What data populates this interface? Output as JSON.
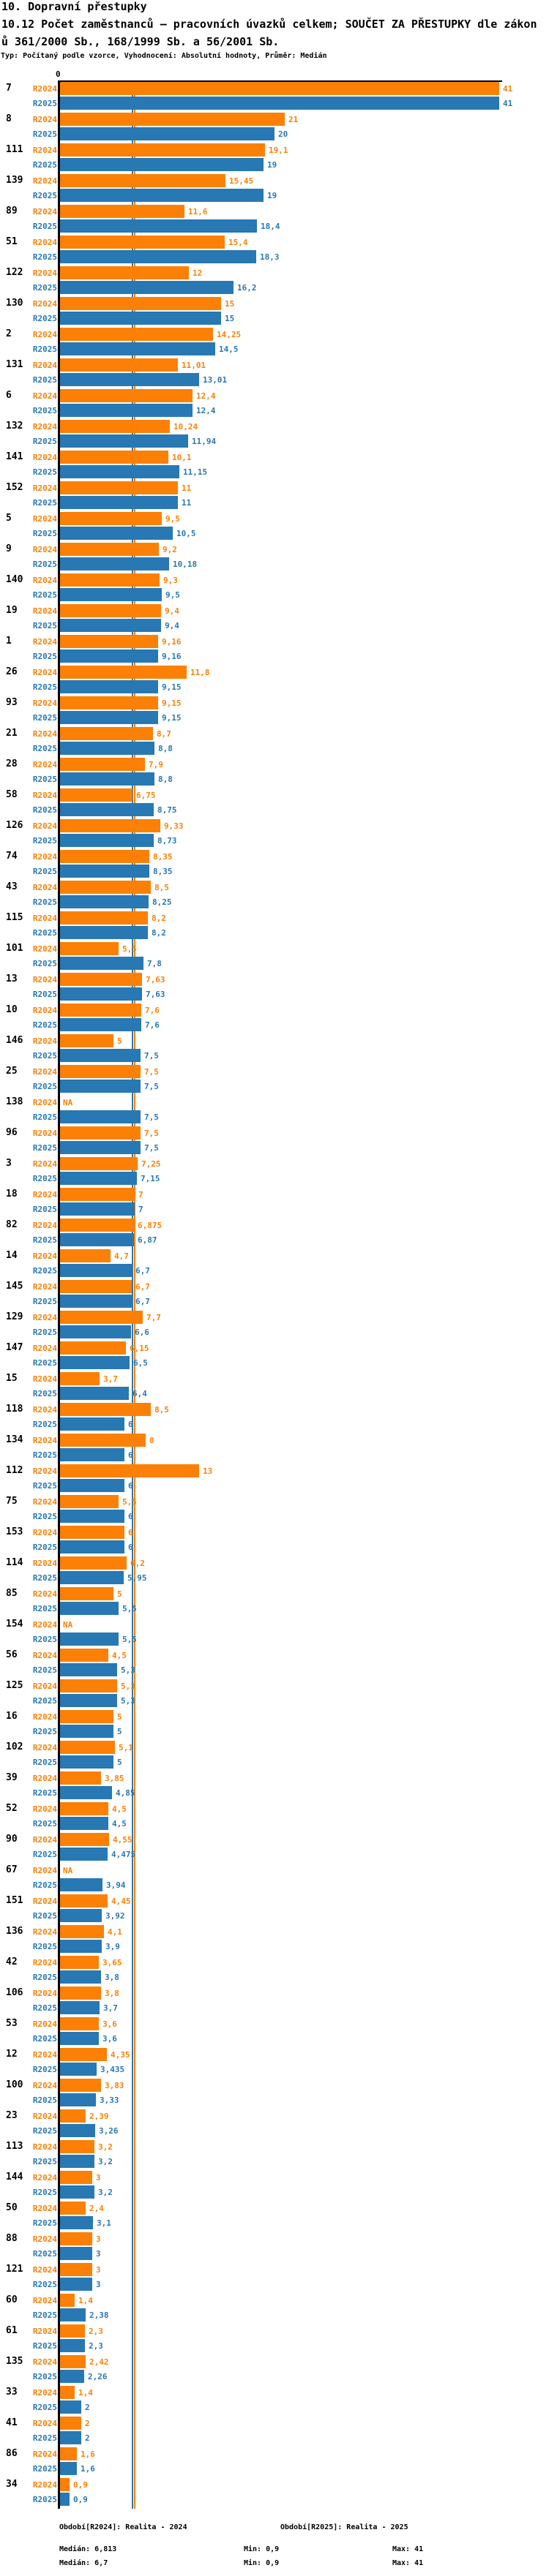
{
  "header": {
    "line1": "10. Dopravní přestupky",
    "line2": "10.12 Počet zaměstnanců – pracovních úvazků celkem; SOUČET ZA PŘESTUPKY dle zákon",
    "line3": "ů 361/2000 Sb., 168/1999 Sb. a 56/2001 Sb.",
    "line4": "Typ: Počítaný podle vzorce, Vyhodnocení: Absolutní hodnoty, Průměr: Medián"
  },
  "chart_data": {
    "type": "bar",
    "orientation": "horizontal",
    "title": "10.12 Počet zaměstnanců – pracovních úvazků celkem; SOUČET ZA PŘESTUPKY dle zákonů 361/2000 Sb., 168/1999 Sb. a 56/2001 Sb.",
    "x_axis": {
      "zero_label": "0",
      "max": 41,
      "gridlines": false
    },
    "series": [
      {
        "key": "r2024",
        "label": "R2024",
        "color": "#FB8005",
        "median": 6.813
      },
      {
        "key": "r2025",
        "label": "R2025",
        "color": "#2878B4",
        "median": 6.7
      }
    ],
    "row_columns": [
      "id",
      "value_2024",
      "label_2024",
      "value_2025",
      "label_2025"
    ],
    "rows": [
      [
        "7",
        41,
        "41",
        41,
        "41"
      ],
      [
        "8",
        21,
        "21",
        20,
        "20"
      ],
      [
        "111",
        19.1,
        "19,1",
        19,
        "19"
      ],
      [
        "139",
        15.45,
        "15,45",
        19,
        "19"
      ],
      [
        "89",
        11.6,
        "11,6",
        18.4,
        "18,4"
      ],
      [
        "51",
        15.4,
        "15,4",
        18.3,
        "18,3"
      ],
      [
        "122",
        12,
        "12",
        16.2,
        "16,2"
      ],
      [
        "130",
        15,
        "15",
        15,
        "15"
      ],
      [
        "2",
        14.25,
        "14,25",
        14.5,
        "14,5"
      ],
      [
        "131",
        11.01,
        "11,01",
        13.01,
        "13,01"
      ],
      [
        "6",
        12.4,
        "12,4",
        12.4,
        "12,4"
      ],
      [
        "132",
        10.24,
        "10,24",
        11.94,
        "11,94"
      ],
      [
        "141",
        10.1,
        "10,1",
        11.15,
        "11,15"
      ],
      [
        "152",
        11,
        "11",
        11,
        "11"
      ],
      [
        "5",
        9.5,
        "9,5",
        10.5,
        "10,5"
      ],
      [
        "9",
        9.2,
        "9,2",
        10.18,
        "10,18"
      ],
      [
        "140",
        9.3,
        "9,3",
        9.5,
        "9,5"
      ],
      [
        "19",
        9.4,
        "9,4",
        9.4,
        "9,4"
      ],
      [
        "1",
        9.16,
        "9,16",
        9.16,
        "9,16"
      ],
      [
        "26",
        11.8,
        "11,8",
        9.15,
        "9,15"
      ],
      [
        "93",
        9.15,
        "9,15",
        9.15,
        "9,15"
      ],
      [
        "21",
        8.7,
        "8,7",
        8.8,
        "8,8"
      ],
      [
        "28",
        7.9,
        "7,9",
        8.8,
        "8,8"
      ],
      [
        "58",
        6.75,
        "6,75",
        8.75,
        "8,75"
      ],
      [
        "126",
        9.33,
        "9,33",
        8.73,
        "8,73"
      ],
      [
        "74",
        8.35,
        "8,35",
        8.35,
        "8,35"
      ],
      [
        "43",
        8.5,
        "8,5",
        8.25,
        "8,25"
      ],
      [
        "115",
        8.2,
        "8,2",
        8.2,
        "8,2"
      ],
      [
        "101",
        5.5,
        "5,5",
        7.8,
        "7,8"
      ],
      [
        "13",
        7.63,
        "7,63",
        7.63,
        "7,63"
      ],
      [
        "10",
        7.6,
        "7,6",
        7.6,
        "7,6"
      ],
      [
        "146",
        5,
        "5",
        7.5,
        "7,5"
      ],
      [
        "25",
        7.5,
        "7,5",
        7.5,
        "7,5"
      ],
      [
        "138",
        null,
        "NA",
        7.5,
        "7,5"
      ],
      [
        "96",
        7.5,
        "7,5",
        7.5,
        "7,5"
      ],
      [
        "3",
        7.25,
        "7,25",
        7.15,
        "7,15"
      ],
      [
        "18",
        7,
        "7",
        7,
        "7"
      ],
      [
        "82",
        6.875,
        "6,875",
        6.87,
        "6,87"
      ],
      [
        "14",
        4.7,
        "4,7",
        6.7,
        "6,7"
      ],
      [
        "145",
        6.7,
        "6,7",
        6.7,
        "6,7"
      ],
      [
        "129",
        7.7,
        "7,7",
        6.6,
        "6,6"
      ],
      [
        "147",
        6.15,
        "6,15",
        6.5,
        "6,5"
      ],
      [
        "15",
        3.7,
        "3,7",
        6.4,
        "6,4"
      ],
      [
        "118",
        8.5,
        "8,5",
        6,
        "6"
      ],
      [
        "134",
        8,
        "8",
        6,
        "6"
      ],
      [
        "112",
        13,
        "13",
        6,
        "6"
      ],
      [
        "75",
        5.5,
        "5,5",
        6,
        "6"
      ],
      [
        "153",
        6,
        "6",
        6,
        "6"
      ],
      [
        "114",
        6.2,
        "6,2",
        5.95,
        "5,95"
      ],
      [
        "85",
        5,
        "5",
        5.5,
        "5,5"
      ],
      [
        "154",
        null,
        "NA",
        5.5,
        "5,5"
      ],
      [
        "56",
        4.5,
        "4,5",
        5.3,
        "5,3"
      ],
      [
        "125",
        5.3,
        "5,3",
        5.3,
        "5,3"
      ],
      [
        "16",
        5,
        "5",
        5,
        "5"
      ],
      [
        "102",
        5.1,
        "5,1",
        5,
        "5"
      ],
      [
        "39",
        3.85,
        "3,85",
        4.85,
        "4,85"
      ],
      [
        "52",
        4.5,
        "4,5",
        4.5,
        "4,5"
      ],
      [
        "90",
        4.55,
        "4,55",
        4.475,
        "4,475"
      ],
      [
        "67",
        null,
        "NA",
        3.94,
        "3,94"
      ],
      [
        "151",
        4.45,
        "4,45",
        3.92,
        "3,92"
      ],
      [
        "136",
        4.1,
        "4,1",
        3.9,
        "3,9"
      ],
      [
        "42",
        3.65,
        "3,65",
        3.8,
        "3,8"
      ],
      [
        "106",
        3.8,
        "3,8",
        3.7,
        "3,7"
      ],
      [
        "53",
        3.6,
        "3,6",
        3.6,
        "3,6"
      ],
      [
        "12",
        4.35,
        "4,35",
        3.435,
        "3,435"
      ],
      [
        "100",
        3.83,
        "3,83",
        3.33,
        "3,33"
      ],
      [
        "23",
        2.39,
        "2,39",
        3.26,
        "3,26"
      ],
      [
        "113",
        3.2,
        "3,2",
        3.2,
        "3,2"
      ],
      [
        "144",
        3,
        "3",
        3.2,
        "3,2"
      ],
      [
        "50",
        2.4,
        "2,4",
        3.1,
        "3,1"
      ],
      [
        "88",
        3,
        "3",
        3,
        "3"
      ],
      [
        "121",
        3,
        "3",
        3,
        "3"
      ],
      [
        "60",
        1.4,
        "1,4",
        2.38,
        "2,38"
      ],
      [
        "61",
        2.3,
        "2,3",
        2.3,
        "2,3"
      ],
      [
        "135",
        2.42,
        "2,42",
        2.26,
        "2,26"
      ],
      [
        "33",
        1.4,
        "1,4",
        2,
        "2"
      ],
      [
        "41",
        2,
        "2",
        2,
        "2"
      ],
      [
        "86",
        1.6,
        "1,6",
        1.6,
        "1,6"
      ],
      [
        "34",
        0.9,
        "0,9",
        0.9,
        "0,9"
      ]
    ]
  },
  "footer": {
    "period_2024": "Období[R2024]: Realita - 2024",
    "period_2025": "Období[R2025]: Realita - 2025",
    "median_2024": "Medián: 6,813",
    "min_2024": "Min: 0,9",
    "max_2024": "Max: 41",
    "median_2025": "Medián: 6,7",
    "min_2025": "Min: 0,9",
    "max_2025": "Max: 41"
  }
}
